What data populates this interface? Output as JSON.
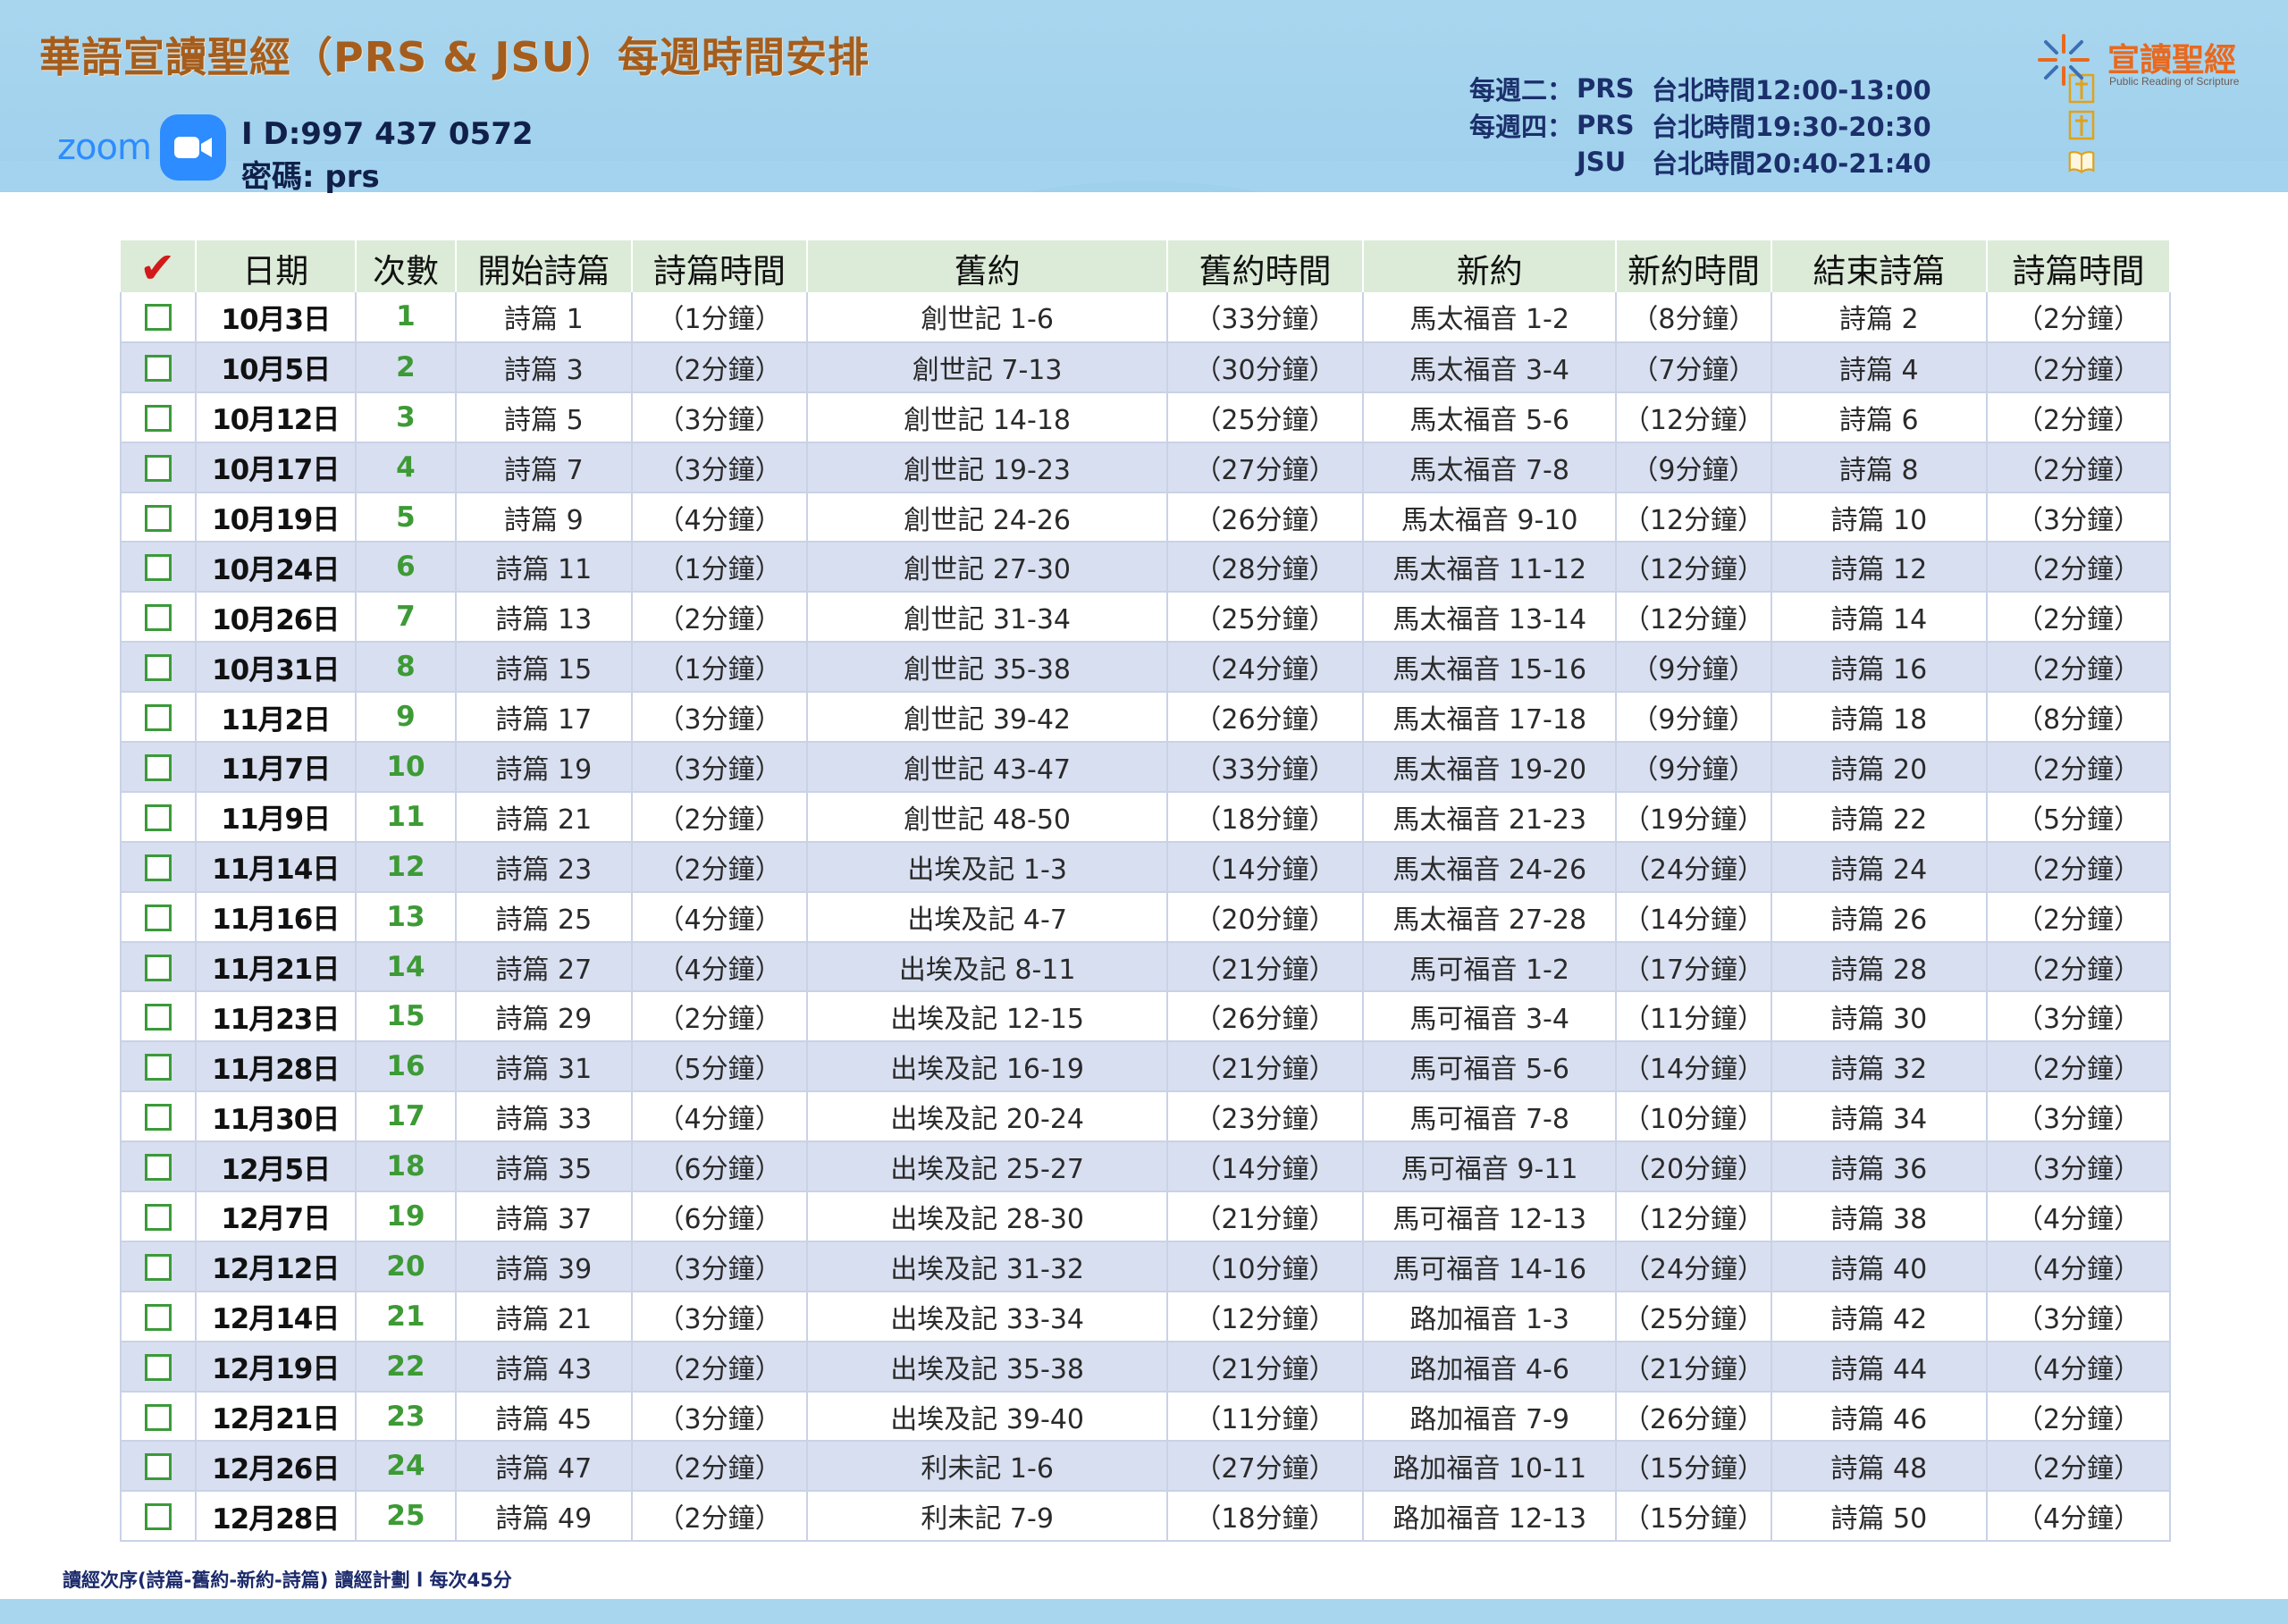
{
  "header": {
    "title": "華語宣讀聖經（PRS & JSU）每週時間安排",
    "zoom_word": "zoom",
    "meeting_id": "I D:997 437 0572",
    "meeting_password": "密碼: prs",
    "schedule": [
      {
        "day": "每週二：",
        "program": "PRS",
        "time": "台北時間12:00-13:00",
        "icon": "cross-icon"
      },
      {
        "day": "每週四：",
        "program": "PRS",
        "time": "台北時間19:30-20:30",
        "icon": "cross-icon"
      },
      {
        "day": "",
        "program": "JSU",
        "time": "台北時間20:40-21:40",
        "icon": "open-book-icon"
      }
    ],
    "brand_name": "宣讀聖經",
    "brand_sub": "Public Reading of Scripture",
    "colors": {
      "band": "#a9d6ef",
      "title": "#a55d1d",
      "brand": "#e8691e",
      "schedule": "#1b2f6b"
    }
  },
  "table": {
    "columns": [
      "✔",
      "日期",
      "次數",
      "開始詩篇",
      "詩篇時間",
      "舊約",
      "舊約時間",
      "新約",
      "新約時間",
      "結束詩篇",
      "詩篇時間"
    ],
    "rows": [
      [
        "10月3日",
        "1",
        "詩篇 1",
        "（1分鐘）",
        "創世記 1-6",
        "（33分鐘）",
        "馬太福音 1-2",
        "（8分鐘）",
        "詩篇 2",
        "（2分鐘）"
      ],
      [
        "10月5日",
        "2",
        "詩篇 3",
        "（2分鐘）",
        "創世記 7-13",
        "（30分鐘）",
        "馬太福音 3-4",
        "（7分鐘）",
        "詩篇 4",
        "（2分鐘）"
      ],
      [
        "10月12日",
        "3",
        "詩篇 5",
        "（3分鐘）",
        "創世記 14-18",
        "（25分鐘）",
        "馬太福音 5-6",
        "（12分鐘）",
        "詩篇 6",
        "（2分鐘）"
      ],
      [
        "10月17日",
        "4",
        "詩篇 7",
        "（3分鐘）",
        "創世記 19-23",
        "（27分鐘）",
        "馬太福音 7-8",
        "（9分鐘）",
        "詩篇 8",
        "（2分鐘）"
      ],
      [
        "10月19日",
        "5",
        "詩篇 9",
        "（4分鐘）",
        "創世記 24-26",
        "（26分鐘）",
        "馬太福音 9-10",
        "（12分鐘）",
        "詩篇 10",
        "（3分鐘）"
      ],
      [
        "10月24日",
        "6",
        "詩篇 11",
        "（1分鐘）",
        "創世記 27-30",
        "（28分鐘）",
        "馬太福音 11-12",
        "（12分鐘）",
        "詩篇 12",
        "（2分鐘）"
      ],
      [
        "10月26日",
        "7",
        "詩篇 13",
        "（2分鐘）",
        "創世記 31-34",
        "（25分鐘）",
        "馬太福音 13-14",
        "（12分鐘）",
        "詩篇 14",
        "（2分鐘）"
      ],
      [
        "10月31日",
        "8",
        "詩篇 15",
        "（1分鐘）",
        "創世記 35-38",
        "（24分鐘）",
        "馬太福音 15-16",
        "（9分鐘）",
        "詩篇 16",
        "（2分鐘）"
      ],
      [
        "11月2日",
        "9",
        "詩篇 17",
        "（3分鐘）",
        "創世記 39-42",
        "（26分鐘）",
        "馬太福音 17-18",
        "（9分鐘）",
        "詩篇 18",
        "（8分鐘）"
      ],
      [
        "11月7日",
        "10",
        "詩篇 19",
        "（3分鐘）",
        "創世記 43-47",
        "（33分鐘）",
        "馬太福音 19-20",
        "（9分鐘）",
        "詩篇 20",
        "（2分鐘）"
      ],
      [
        "11月9日",
        "11",
        "詩篇 21",
        "（2分鐘）",
        "創世記 48-50",
        "（18分鐘）",
        "馬太福音 21-23",
        "（19分鐘）",
        "詩篇 22",
        "（5分鐘）"
      ],
      [
        "11月14日",
        "12",
        "詩篇 23",
        "（2分鐘）",
        "出埃及記 1-3",
        "（14分鐘）",
        "馬太福音 24-26",
        "（24分鐘）",
        "詩篇 24",
        "（2分鐘）"
      ],
      [
        "11月16日",
        "13",
        "詩篇 25",
        "（4分鐘）",
        "出埃及記 4-7",
        "（20分鐘）",
        "馬太福音 27-28",
        "（14分鐘）",
        "詩篇 26",
        "（2分鐘）"
      ],
      [
        "11月21日",
        "14",
        "詩篇 27",
        "（4分鐘）",
        "出埃及記 8-11",
        "（21分鐘）",
        "馬可福音 1-2",
        "（17分鐘）",
        "詩篇 28",
        "（2分鐘）"
      ],
      [
        "11月23日",
        "15",
        "詩篇 29",
        "（2分鐘）",
        "出埃及記 12-15",
        "（26分鐘）",
        "馬可福音 3-4",
        "（11分鐘）",
        "詩篇 30",
        "（3分鐘）"
      ],
      [
        "11月28日",
        "16",
        "詩篇 31",
        "（5分鐘）",
        "出埃及記 16-19",
        "（21分鐘）",
        "馬可福音 5-6",
        "（14分鐘）",
        "詩篇 32",
        "（2分鐘）"
      ],
      [
        "11月30日",
        "17",
        "詩篇 33",
        "（4分鐘）",
        "出埃及記 20-24",
        "（23分鐘）",
        "馬可福音 7-8",
        "（10分鐘）",
        "詩篇 34",
        "（3分鐘）"
      ],
      [
        "12月5日",
        "18",
        "詩篇 35",
        "（6分鐘）",
        "出埃及記 25-27",
        "（14分鐘）",
        "馬可福音 9-11",
        "（20分鐘）",
        "詩篇 36",
        "（3分鐘）"
      ],
      [
        "12月7日",
        "19",
        "詩篇 37",
        "（6分鐘）",
        "出埃及記 28-30",
        "（21分鐘）",
        "馬可福音 12-13",
        "（12分鐘）",
        "詩篇 38",
        "（4分鐘）"
      ],
      [
        "12月12日",
        "20",
        "詩篇 39",
        "（3分鐘）",
        "出埃及記 31-32",
        "（10分鐘）",
        "馬可福音 14-16",
        "（24分鐘）",
        "詩篇 40",
        "（4分鐘）"
      ],
      [
        "12月14日",
        "21",
        "詩篇 21",
        "（3分鐘）",
        "出埃及記 33-34",
        "（12分鐘）",
        "路加福音 1-3",
        "（25分鐘）",
        "詩篇 42",
        "（3分鐘）"
      ],
      [
        "12月19日",
        "22",
        "詩篇 43",
        "（2分鐘）",
        "出埃及記 35-38",
        "（21分鐘）",
        "路加福音 4-6",
        "（21分鐘）",
        "詩篇 44",
        "（4分鐘）"
      ],
      [
        "12月21日",
        "23",
        "詩篇 45",
        "（3分鐘）",
        "出埃及記 39-40",
        "（11分鐘）",
        "路加福音 7-9",
        "（26分鐘）",
        "詩篇 46",
        "（2分鐘）"
      ],
      [
        "12月26日",
        "24",
        "詩篇 47",
        "（2分鐘）",
        "利未記 1-6",
        "（27分鐘）",
        "路加福音 10-11",
        "（15分鐘）",
        "詩篇 48",
        "（2分鐘）"
      ],
      [
        "12月28日",
        "25",
        "詩篇 49",
        "（2分鐘）",
        "利未記 7-9",
        "（18分鐘）",
        "路加福音 12-13",
        "（15分鐘）",
        "詩篇 50",
        "（4分鐘）"
      ]
    ]
  },
  "footnote": "讀經次序(詩篇-舊約-新約-詩篇) 讀經計劃 l 每次45分"
}
